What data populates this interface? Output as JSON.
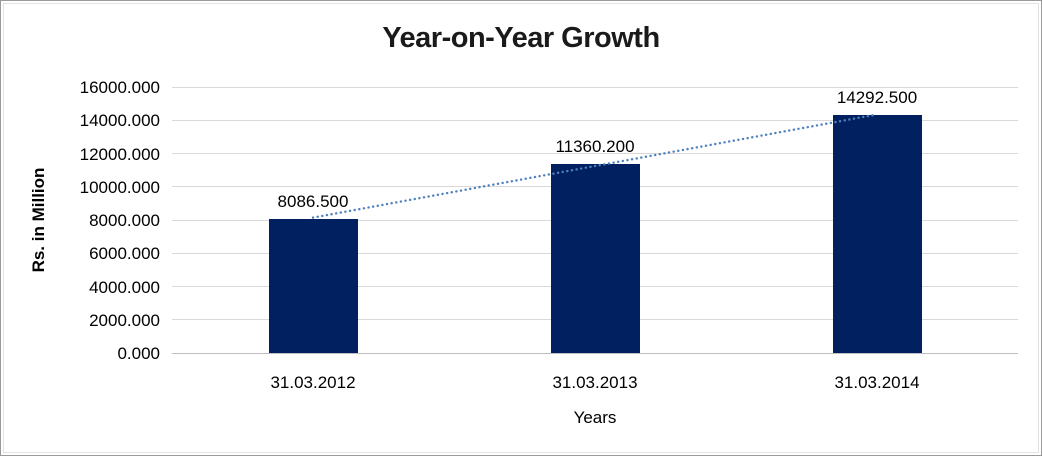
{
  "chart_data": {
    "type": "bar",
    "title": "Year-on-Year Growth",
    "xlabel": "Years",
    "ylabel": "Rs. in Million",
    "categories": [
      "31.03.2012",
      "31.03.2013",
      "31.03.2014"
    ],
    "values": [
      8086.5,
      11360.2,
      14292.5
    ],
    "data_labels": [
      "8086.500",
      "11360.200",
      "14292.500"
    ],
    "ylim": [
      0,
      16000
    ],
    "ytick_step": 2000,
    "ytick_labels": [
      "0.000",
      "2000.000",
      "4000.000",
      "6000.000",
      "8000.000",
      "10000.000",
      "12000.000",
      "14000.000",
      "16000.000"
    ],
    "grid": true,
    "legend": "none",
    "trendline": {
      "type": "linear",
      "style": "dotted",
      "color": "#4F81BD"
    },
    "colors": {
      "bar": "#002060",
      "gridline": "#d9d9d9",
      "baseline": "#bfbfbf",
      "text": "#000000"
    }
  }
}
